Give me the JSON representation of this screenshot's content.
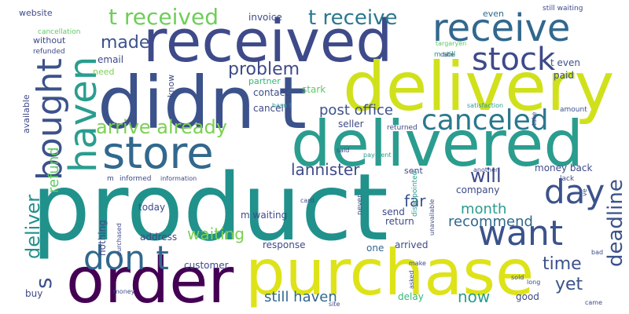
{
  "words": {
    "product": "product",
    "received": "received",
    "didn_t": "didn t",
    "delivery": "delivery",
    "delivered": "delivered",
    "purchase": "purchase",
    "order": "order",
    "store": "store",
    "receive": "receive",
    "stock": "stock",
    "bought": "bought",
    "haven": "haven",
    "canceled": "canceled",
    "want": "want",
    "day": "day",
    "don_t": "don t",
    "t_received": "t received",
    "t_receive": "t receive",
    "arrive_already": "arrive already",
    "deliver": "deliver",
    "refund": "refund",
    "problem": "problem",
    "made": "made",
    "post_office": "post office",
    "lannister": "lannister",
    "waiting": "waiting",
    "will": "will",
    "month": "month",
    "recommend": "recommend",
    "deadline": "deadline",
    "time": "time",
    "yet": "yet",
    "still_haven": "still haven",
    "now": "now",
    "s": "s",
    "website": "website",
    "invoice": "invoice",
    "even": "even",
    "still_waiting": "still waiting",
    "cancellation": "cancellation",
    "without": "without",
    "refunded": "refunded",
    "email": "email",
    "know": "know",
    "need": "need",
    "partner": "partner",
    "contact": "contact",
    "cancel": "cancel",
    "seller": "seller",
    "m_still": "m still",
    "stark": "stark",
    "t_even": "t even",
    "paid": "paid",
    "amount": "amount",
    "targaryen": "targaryen",
    "date": "date",
    "satisfaction": "satisfaction",
    "returned": "returned",
    "take": "take",
    "available": "available",
    "hasn_t": "hasn t",
    "money_back": "money back",
    "lack": "lack",
    "far": "far",
    "company": "company",
    "sent": "sent",
    "said": "said",
    "payment": "payment",
    "another": "another",
    "informed": "informed",
    "information": "information",
    "m": "m",
    "m_waiting": "m waiting",
    "today": "today",
    "send": "send",
    "return": "return",
    "arrived": "arrived",
    "one": "one",
    "response": "response",
    "address": "address",
    "nothing": "nothing",
    "purchased": "purchased",
    "customer": "customer",
    "delay": "delay",
    "good": "good",
    "buy": "buy",
    "money": "money",
    "site": "site",
    "sold": "sold",
    "long": "long",
    "came": "came",
    "bad": "bad",
    "make": "make",
    "card": "card",
    "never": "never",
    "disappointed": "disappointed",
    "unavailable": "unavailable",
    "asked": "asked",
    "ve": "ve"
  },
  "colors": {
    "background": "#ffffff",
    "dark_purple": "#440154",
    "indigo": "#3b528b",
    "blue": "#31688e",
    "teal": "#21918c",
    "green": "#35b779",
    "light_green": "#5ec962",
    "lime": "#bddf26",
    "yellow": "#dde318"
  }
}
